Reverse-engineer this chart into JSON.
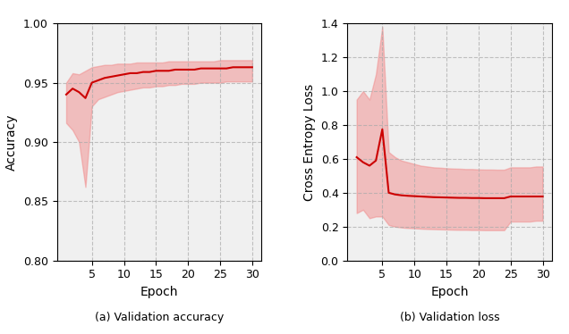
{
  "acc_mean": [
    0.94,
    0.945,
    0.942,
    0.937,
    0.95,
    0.952,
    0.954,
    0.955,
    0.956,
    0.957,
    0.958,
    0.958,
    0.959,
    0.959,
    0.96,
    0.96,
    0.96,
    0.961,
    0.961,
    0.961,
    0.961,
    0.962,
    0.962,
    0.962,
    0.962,
    0.962,
    0.963,
    0.963,
    0.963,
    0.963
  ],
  "acc_upper": [
    0.95,
    0.958,
    0.957,
    0.96,
    0.963,
    0.964,
    0.965,
    0.965,
    0.966,
    0.966,
    0.966,
    0.967,
    0.967,
    0.967,
    0.967,
    0.967,
    0.968,
    0.968,
    0.968,
    0.968,
    0.968,
    0.968,
    0.968,
    0.968,
    0.969,
    0.969,
    0.969,
    0.969,
    0.969,
    0.969
  ],
  "acc_lower": [
    0.916,
    0.91,
    0.9,
    0.862,
    0.93,
    0.936,
    0.938,
    0.94,
    0.942,
    0.943,
    0.944,
    0.945,
    0.946,
    0.946,
    0.947,
    0.947,
    0.948,
    0.948,
    0.949,
    0.949,
    0.949,
    0.95,
    0.95,
    0.95,
    0.95,
    0.951,
    0.951,
    0.951,
    0.951,
    0.951
  ],
  "loss_mean": [
    0.61,
    0.58,
    0.56,
    0.59,
    0.775,
    0.4,
    0.39,
    0.385,
    0.382,
    0.38,
    0.378,
    0.376,
    0.374,
    0.373,
    0.372,
    0.371,
    0.37,
    0.37,
    0.369,
    0.369,
    0.368,
    0.368,
    0.368,
    0.368,
    0.378,
    0.378,
    0.378,
    0.378,
    0.378,
    0.378
  ],
  "loss_upper": [
    0.95,
    1.0,
    0.95,
    1.1,
    1.38,
    0.64,
    0.61,
    0.59,
    0.58,
    0.57,
    0.56,
    0.555,
    0.55,
    0.548,
    0.545,
    0.543,
    0.542,
    0.54,
    0.54,
    0.538,
    0.537,
    0.537,
    0.536,
    0.536,
    0.55,
    0.55,
    0.55,
    0.55,
    0.555,
    0.555
  ],
  "loss_lower": [
    0.28,
    0.3,
    0.25,
    0.26,
    0.26,
    0.21,
    0.2,
    0.195,
    0.192,
    0.19,
    0.188,
    0.186,
    0.185,
    0.184,
    0.183,
    0.182,
    0.181,
    0.181,
    0.18,
    0.18,
    0.179,
    0.179,
    0.179,
    0.179,
    0.23,
    0.23,
    0.23,
    0.23,
    0.235,
    0.235
  ],
  "epochs": [
    1,
    2,
    3,
    4,
    5,
    6,
    7,
    8,
    9,
    10,
    11,
    12,
    13,
    14,
    15,
    16,
    17,
    18,
    19,
    20,
    21,
    22,
    23,
    24,
    25,
    26,
    27,
    28,
    29,
    30
  ],
  "line_color": "#cc0000",
  "fill_color": "#f08080",
  "fill_alpha": 0.45,
  "acc_ylim": [
    0.8,
    1.0
  ],
  "loss_ylim": [
    0.0,
    1.4
  ],
  "acc_yticks": [
    0.8,
    0.85,
    0.9,
    0.95,
    1.0
  ],
  "loss_yticks": [
    0.0,
    0.2,
    0.4,
    0.6,
    0.8,
    1.0,
    1.2,
    1.4
  ],
  "xticks": [
    5,
    10,
    15,
    20,
    25,
    30
  ],
  "xlabel": "Epoch",
  "acc_ylabel": "Accuracy",
  "loss_ylabel": "Cross Entropy Loss",
  "caption_a": "(a) Validation accuracy",
  "caption_b": "(b) Validation loss",
  "grid_color": "#aaaaaa",
  "grid_linestyle": "--",
  "grid_alpha": 0.7,
  "bg_color": "#f0f0f0"
}
